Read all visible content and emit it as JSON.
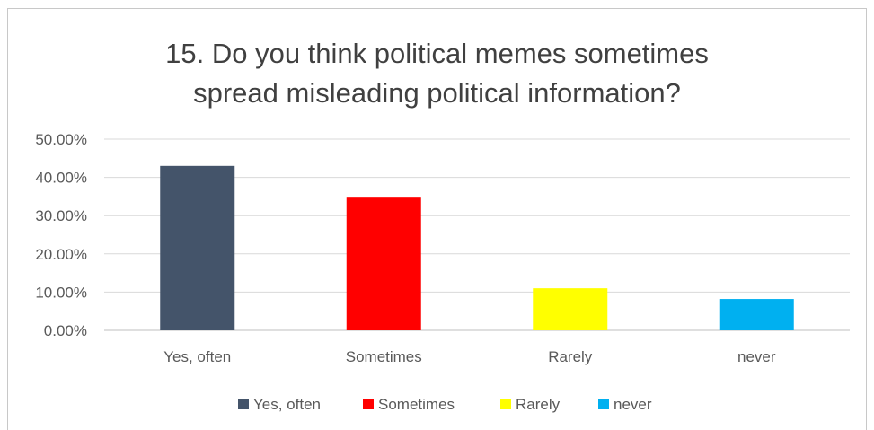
{
  "chart_data": {
    "type": "bar",
    "title": "15. Do you think political memes sometimes\nspread misleading political information?",
    "categories": [
      "Yes, often",
      "Sometimes",
      "Rarely",
      "never"
    ],
    "values": [
      0.43,
      0.347,
      0.11,
      0.082
    ],
    "colors": [
      "#44546A",
      "#FF0000",
      "#FFFF00",
      "#00B0F0"
    ],
    "yticks": [
      "0.00%",
      "10.00%",
      "20.00%",
      "30.00%",
      "40.00%",
      "50.00%"
    ],
    "ylim": [
      0,
      0.5
    ],
    "grid": true,
    "legend": {
      "position": "bottom",
      "entries": [
        "Yes, often",
        "Sometimes",
        "Rarely",
        "never"
      ]
    }
  }
}
